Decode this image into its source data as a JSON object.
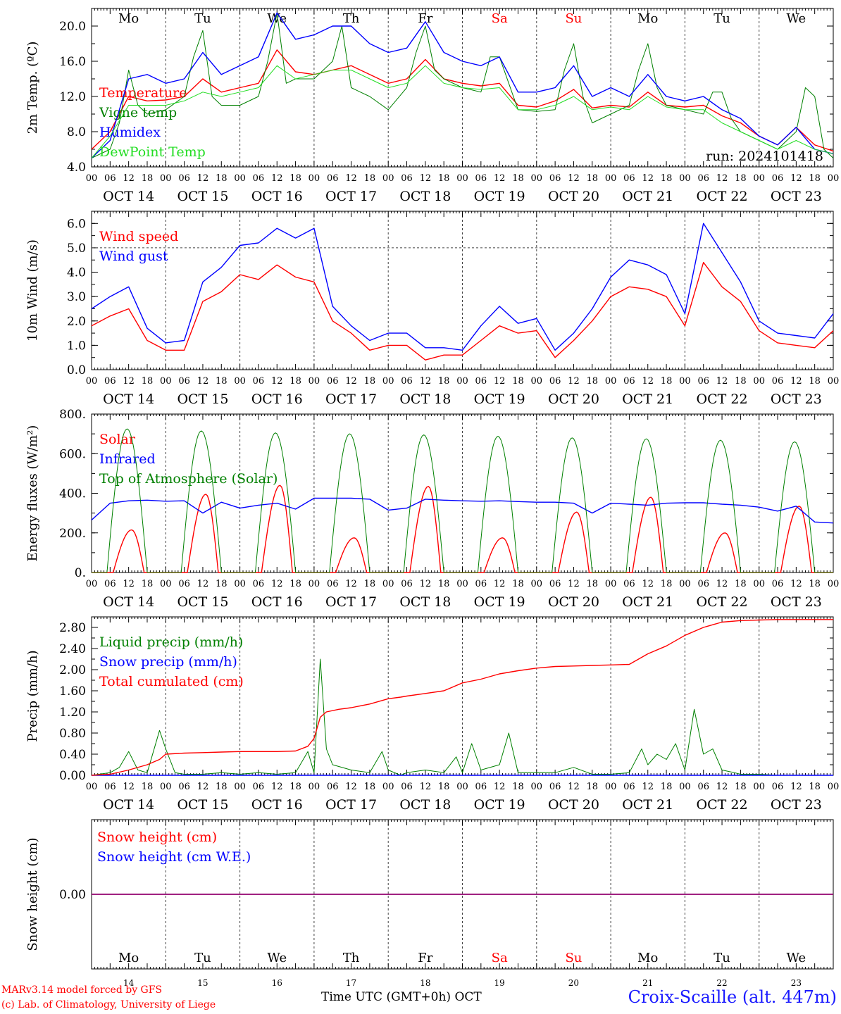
{
  "page": {
    "credit_line1": "MARv3.14 model forced by GFS",
    "credit_line2": "(c) Lab. of Climatology, University of Liege",
    "x_title": "Time UTC (GMT+0h) OCT",
    "station": "Croix-Scaille (alt. 447m)"
  },
  "colors": {
    "red": "#ff0000",
    "blue": "#0000ff",
    "green": "#008000",
    "lightgreen": "#22dd22",
    "purple": "#800080",
    "weekend": "#ff0000"
  },
  "days": {
    "weekday_labels": [
      "Mo",
      "Tu",
      "We",
      "Th",
      "Fr",
      "Sa",
      "Su",
      "Mo",
      "Tu",
      "We"
    ],
    "weekend_flags": [
      false,
      false,
      false,
      false,
      false,
      true,
      true,
      false,
      false,
      false
    ],
    "date_labels": [
      "OCT 14",
      "OCT 15",
      "OCT 16",
      "OCT 17",
      "OCT 18",
      "OCT 19",
      "OCT 20",
      "OCT 21",
      "OCT 22",
      "OCT 23"
    ],
    "day_numbers": [
      "14",
      "15",
      "16",
      "17",
      "18",
      "19",
      "20",
      "21",
      "22",
      "23"
    ],
    "hour_ticks": [
      "00",
      "06",
      "12",
      "18"
    ],
    "end_tick": "00"
  },
  "chart_data": [
    {
      "type": "line",
      "ylabel": "2m Temp. (ºC)",
      "ylim": [
        4.0,
        22.0
      ],
      "yticks": [
        "4.0",
        "8.0",
        "12.0",
        "16.0",
        "20.0"
      ],
      "show_weekdays": true,
      "annotation": "run: 2024101418",
      "x_unit": "hours since Oct 14 00 UTC",
      "series": [
        {
          "name": "Temperature",
          "color": "red",
          "x": [
            0,
            6,
            12,
            18,
            24,
            30,
            36,
            42,
            48,
            54,
            60,
            66,
            72,
            78,
            84,
            90,
            96,
            102,
            108,
            114,
            120,
            126,
            132,
            138,
            144,
            150,
            156,
            162,
            168,
            174,
            180,
            186,
            192,
            198,
            204,
            210,
            216,
            222,
            228,
            234,
            240
          ],
          "y": [
            6.0,
            8.0,
            12.0,
            11.5,
            11.6,
            12.0,
            14.0,
            12.5,
            13.0,
            13.5,
            17.3,
            14.8,
            14.5,
            15.0,
            15.5,
            14.5,
            13.5,
            14.0,
            16.2,
            14.0,
            13.5,
            13.2,
            13.5,
            11.0,
            10.8,
            11.5,
            12.8,
            10.7,
            11.0,
            10.8,
            12.5,
            11.0,
            10.8,
            11.0,
            9.8,
            9.0,
            7.5,
            6.5,
            8.5,
            6.5,
            5.8
          ]
        },
        {
          "name": "Vigne temp",
          "color": "green",
          "x": [
            0,
            6,
            9,
            12,
            15,
            18,
            24,
            30,
            33,
            36,
            39,
            42,
            48,
            54,
            57,
            60,
            63,
            66,
            72,
            78,
            81,
            84,
            87,
            90,
            96,
            102,
            105,
            108,
            111,
            114,
            120,
            126,
            129,
            132,
            138,
            144,
            150,
            153,
            156,
            159,
            162,
            168,
            174,
            177,
            180,
            183,
            186,
            192,
            198,
            201,
            204,
            207,
            210,
            216,
            222,
            228,
            231,
            234,
            237,
            240
          ],
          "y": [
            5.0,
            6.0,
            9.0,
            15.0,
            11.0,
            10.0,
            10.5,
            12.0,
            16.5,
            19.5,
            12.0,
            11.0,
            11.0,
            12.0,
            16.0,
            21.5,
            13.5,
            14.0,
            14.0,
            16.0,
            20.0,
            13.0,
            12.5,
            12.0,
            10.5,
            13.0,
            17.0,
            20.0,
            15.0,
            14.0,
            13.0,
            12.5,
            16.5,
            16.5,
            10.5,
            10.3,
            10.5,
            15.0,
            18.0,
            12.0,
            9.0,
            10.0,
            11.0,
            15.0,
            18.0,
            13.0,
            11.0,
            10.5,
            10.0,
            12.5,
            12.5,
            9.5,
            8.0,
            7.0,
            6.0,
            8.0,
            13.0,
            12.0,
            6.0,
            5.0
          ]
        },
        {
          "name": "Humidex",
          "color": "blue",
          "x": [
            0,
            6,
            12,
            18,
            24,
            30,
            36,
            42,
            48,
            54,
            60,
            66,
            72,
            78,
            84,
            90,
            96,
            102,
            108,
            114,
            120,
            126,
            132,
            138,
            144,
            150,
            156,
            162,
            168,
            174,
            180,
            186,
            192,
            198,
            204,
            210,
            216,
            222,
            228,
            234,
            240
          ],
          "y": [
            5.0,
            7.0,
            14.0,
            14.5,
            13.5,
            14.0,
            17.0,
            14.5,
            15.5,
            16.5,
            21.5,
            18.5,
            19.0,
            20.0,
            20.0,
            18.0,
            17.0,
            17.5,
            20.5,
            17.0,
            16.0,
            15.5,
            16.5,
            12.5,
            12.5,
            13.0,
            15.5,
            12.0,
            13.0,
            12.0,
            14.5,
            12.0,
            11.5,
            12.0,
            10.5,
            9.5,
            7.5,
            6.5,
            8.5,
            6.0,
            5.5
          ]
        },
        {
          "name": "DewPoint Temp",
          "color": "lightgreen",
          "x": [
            0,
            6,
            12,
            18,
            24,
            30,
            36,
            42,
            48,
            54,
            60,
            66,
            72,
            78,
            84,
            90,
            96,
            102,
            108,
            114,
            120,
            126,
            132,
            138,
            144,
            150,
            156,
            162,
            168,
            174,
            180,
            186,
            192,
            198,
            204,
            210,
            216,
            222,
            228,
            234,
            240
          ],
          "y": [
            5.0,
            7.5,
            11.0,
            11.0,
            11.0,
            11.5,
            12.5,
            12.0,
            12.5,
            13.0,
            15.5,
            14.0,
            14.5,
            15.0,
            15.0,
            14.0,
            13.0,
            13.5,
            15.5,
            13.5,
            13.0,
            12.8,
            13.0,
            10.5,
            10.5,
            11.0,
            12.0,
            10.5,
            10.8,
            10.5,
            12.0,
            10.8,
            10.5,
            10.5,
            9.0,
            8.0,
            7.0,
            6.0,
            7.0,
            6.0,
            5.5
          ]
        }
      ]
    },
    {
      "type": "line",
      "ylabel": "10m Wind (m/s)",
      "ylim": [
        0.0,
        6.5
      ],
      "yticks": [
        "0.0",
        "1.0",
        "2.0",
        "3.0",
        "4.0",
        "5.0",
        "6.0"
      ],
      "dashed_y": 5.0,
      "show_weekdays": false,
      "series": [
        {
          "name": "Wind speed",
          "color": "red",
          "x": [
            0,
            6,
            12,
            18,
            24,
            30,
            36,
            42,
            48,
            54,
            60,
            66,
            72,
            78,
            84,
            90,
            96,
            102,
            108,
            114,
            120,
            126,
            132,
            138,
            144,
            150,
            156,
            162,
            168,
            174,
            180,
            186,
            192,
            198,
            204,
            210,
            216,
            222,
            228,
            234,
            240
          ],
          "y": [
            1.8,
            2.2,
            2.5,
            1.2,
            0.8,
            0.8,
            2.8,
            3.2,
            3.9,
            3.7,
            4.3,
            3.8,
            3.6,
            2.0,
            1.5,
            0.8,
            1.0,
            1.0,
            0.4,
            0.6,
            0.6,
            1.2,
            1.8,
            1.5,
            1.6,
            0.5,
            1.2,
            2.0,
            3.0,
            3.4,
            3.3,
            3.0,
            1.8,
            4.4,
            3.4,
            2.8,
            1.6,
            1.1,
            1.0,
            0.9,
            1.6
          ]
        },
        {
          "name": "Wind gust",
          "color": "blue",
          "x": [
            0,
            6,
            12,
            18,
            24,
            30,
            36,
            42,
            48,
            54,
            60,
            66,
            72,
            78,
            84,
            90,
            96,
            102,
            108,
            114,
            120,
            126,
            132,
            138,
            144,
            150,
            156,
            162,
            168,
            174,
            180,
            186,
            192,
            198,
            204,
            210,
            216,
            222,
            228,
            234,
            240
          ],
          "y": [
            2.5,
            3.0,
            3.4,
            1.7,
            1.1,
            1.2,
            3.6,
            4.2,
            5.1,
            5.2,
            5.8,
            5.4,
            5.8,
            2.6,
            1.8,
            1.2,
            1.5,
            1.5,
            0.9,
            0.9,
            0.8,
            1.8,
            2.6,
            1.9,
            2.1,
            0.8,
            1.5,
            2.5,
            3.8,
            4.5,
            4.3,
            3.9,
            2.3,
            6.0,
            4.8,
            3.6,
            2.0,
            1.5,
            1.4,
            1.3,
            2.3
          ]
        }
      ]
    },
    {
      "type": "line",
      "ylabel": "Energy fluxes (W/m²)",
      "ylim": [
        0,
        800
      ],
      "yticks": [
        "0.",
        "200.",
        "400.",
        "600.",
        "800."
      ],
      "show_weekdays": false,
      "series": [
        {
          "name": "Solar",
          "color": "red",
          "daily_peak": [
            215,
            395,
            440,
            175,
            435,
            175,
            305,
            380,
            200,
            335
          ],
          "peak_hour": 13
        },
        {
          "name": "Infrared",
          "color": "blue",
          "x": [
            0,
            6,
            12,
            18,
            24,
            30,
            36,
            42,
            48,
            54,
            60,
            66,
            72,
            78,
            84,
            90,
            96,
            102,
            108,
            114,
            120,
            126,
            132,
            138,
            144,
            150,
            156,
            162,
            168,
            174,
            180,
            186,
            192,
            198,
            204,
            210,
            216,
            222,
            228,
            234,
            240
          ],
          "y": [
            265,
            350,
            362,
            365,
            360,
            362,
            300,
            355,
            325,
            340,
            350,
            320,
            375,
            375,
            375,
            370,
            315,
            325,
            370,
            365,
            362,
            360,
            362,
            358,
            355,
            355,
            350,
            300,
            350,
            345,
            340,
            350,
            352,
            352,
            345,
            340,
            330,
            310,
            335,
            255,
            250
          ]
        },
        {
          "name": "Top of Atmosphere (Solar)",
          "color": "green",
          "daily_peak": [
            725,
            715,
            705,
            700,
            695,
            688,
            680,
            675,
            668,
            660
          ],
          "day_start": 5,
          "day_end": 18
        }
      ]
    },
    {
      "type": "line",
      "ylabel": "Precip (mm/h)",
      "ylim": [
        0.0,
        3.0
      ],
      "yticks": [
        "0.00",
        "0.40",
        "0.80",
        "1.20",
        "1.60",
        "2.00",
        "2.40",
        "2.80"
      ],
      "show_weekdays": false,
      "series": [
        {
          "name": "Liquid precip (mm/h)",
          "color": "green",
          "x": [
            0,
            6,
            9,
            12,
            15,
            18,
            22,
            24,
            27,
            30,
            36,
            42,
            48,
            54,
            60,
            66,
            70,
            72,
            74,
            76,
            78,
            84,
            90,
            94,
            96,
            100,
            102,
            108,
            114,
            118,
            120,
            123,
            126,
            132,
            135,
            138,
            144,
            150,
            156,
            162,
            168,
            174,
            178,
            180,
            183,
            186,
            189,
            192,
            195,
            198,
            201,
            204,
            208,
            210,
            216,
            222,
            228,
            234,
            240
          ],
          "y": [
            0.0,
            0.05,
            0.15,
            0.45,
            0.1,
            0.05,
            0.85,
            0.5,
            0.05,
            0.02,
            0.02,
            0.05,
            0.02,
            0.05,
            0.02,
            0.05,
            0.45,
            0.05,
            2.2,
            0.5,
            0.2,
            0.1,
            0.05,
            0.45,
            0.1,
            0.0,
            0.05,
            0.1,
            0.05,
            0.35,
            0.05,
            0.6,
            0.1,
            0.2,
            0.8,
            0.05,
            0.05,
            0.05,
            0.15,
            0.02,
            0.02,
            0.05,
            0.5,
            0.2,
            0.4,
            0.3,
            0.6,
            0.1,
            1.25,
            0.4,
            0.5,
            0.1,
            0.05,
            0.02,
            0.02,
            0.0,
            0.0,
            0.0,
            0.0
          ]
        },
        {
          "name": "Snow precip (mm/h)",
          "color": "blue",
          "x": [
            0,
            240
          ],
          "y": [
            0.0,
            0.0
          ]
        },
        {
          "name": "Total cumulated (cm)",
          "color": "red",
          "x": [
            0,
            6,
            12,
            18,
            22,
            24,
            30,
            36,
            42,
            48,
            54,
            60,
            66,
            70,
            72,
            74,
            76,
            80,
            84,
            90,
            96,
            100,
            102,
            108,
            114,
            120,
            126,
            132,
            138,
            144,
            150,
            156,
            162,
            168,
            174,
            180,
            186,
            192,
            198,
            204,
            210,
            216,
            222,
            228,
            234,
            240
          ],
          "y": [
            0.0,
            0.02,
            0.1,
            0.2,
            0.3,
            0.4,
            0.42,
            0.43,
            0.44,
            0.45,
            0.45,
            0.45,
            0.46,
            0.55,
            0.7,
            1.1,
            1.2,
            1.25,
            1.28,
            1.35,
            1.45,
            1.48,
            1.5,
            1.55,
            1.6,
            1.75,
            1.82,
            1.92,
            1.98,
            2.03,
            2.06,
            2.07,
            2.08,
            2.09,
            2.1,
            2.3,
            2.45,
            2.65,
            2.8,
            2.9,
            2.93,
            2.94,
            2.95,
            2.95,
            2.95,
            2.95
          ]
        }
      ]
    },
    {
      "type": "line",
      "ylabel": "Snow height (cm)",
      "ylim": [
        -1.0,
        1.0
      ],
      "yticks": [
        "0.00"
      ],
      "show_weekdays": true,
      "series": [
        {
          "name": "Snow height (cm)",
          "color": "red",
          "x": [
            0,
            240
          ],
          "y": [
            0.0,
            0.0
          ]
        },
        {
          "name": "Snow height (cm W.E.)",
          "color": "blue",
          "x": [
            0,
            240
          ],
          "y": [
            0.0,
            0.0
          ]
        }
      ]
    }
  ]
}
